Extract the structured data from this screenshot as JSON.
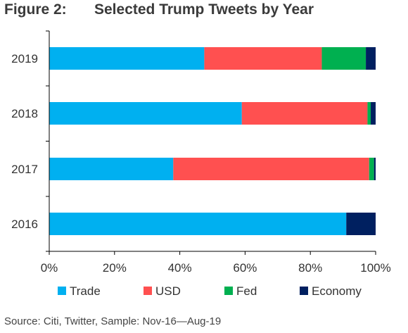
{
  "figure_label": "Figure 2:",
  "title": "Selected Trump Tweets by Year",
  "source": "Source: Citi, Twitter, Sample: Nov-16—Aug-19",
  "chart_data": {
    "type": "bar",
    "orientation": "horizontal",
    "stacked": true,
    "categories": [
      "2019",
      "2018",
      "2017",
      "2016"
    ],
    "series": [
      {
        "name": "Trade",
        "color": "#00B0F0",
        "values": [
          47.5,
          59,
          38,
          91
        ]
      },
      {
        "name": "USD",
        "color": "#FF5050",
        "values": [
          36,
          38.5,
          60,
          0
        ]
      },
      {
        "name": "Fed",
        "color": "#00B050",
        "values": [
          13.5,
          1,
          1.5,
          0
        ]
      },
      {
        "name": "Economy",
        "color": "#002060",
        "values": [
          3,
          1.5,
          0.5,
          9
        ]
      }
    ],
    "xlim": [
      0,
      100
    ],
    "x_ticks": [
      "0%",
      "20%",
      "40%",
      "60%",
      "80%",
      "100%"
    ],
    "grid": false,
    "legend_position": "bottom"
  }
}
